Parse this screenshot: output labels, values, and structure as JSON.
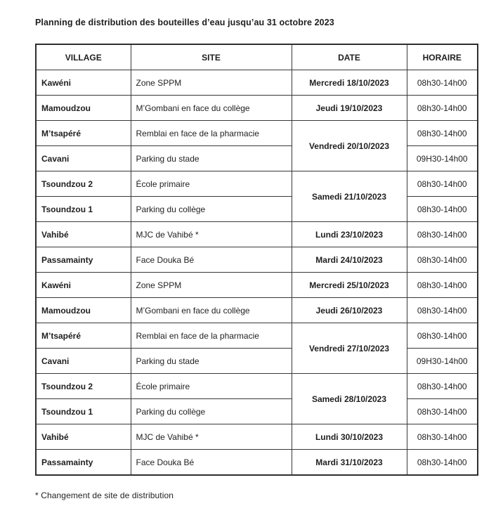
{
  "document": {
    "title": "Planning de distribution des bouteilles d’eau jusqu’au 31 octobre 2023",
    "footnote": "* Changement de site de distribution"
  },
  "table": {
    "headers": [
      "VILLAGE",
      "SITE",
      "DATE",
      "HORAIRE"
    ],
    "rows": [
      {
        "village": "Kawéni",
        "site": "Zone SPPM",
        "date": "Mercredi 18/10/2023",
        "date_rowspan": 1,
        "horaire": "08h30-14h00"
      },
      {
        "village": "Mamoudzou",
        "site": "M’Gombani en face du collège",
        "date": "Jeudi 19/10/2023",
        "date_rowspan": 1,
        "horaire": "08h30-14h00"
      },
      {
        "village": "M’tsapéré",
        "site": "Remblai en face de la pharmacie",
        "date": "Vendredi 20/10/2023",
        "date_rowspan": 2,
        "horaire": "08h30-14h00"
      },
      {
        "village": "Cavani",
        "site": "Parking du stade",
        "date": null,
        "date_rowspan": 0,
        "horaire": "09H30-14h00"
      },
      {
        "village": "Tsoundzou 2",
        "site": "École primaire",
        "date": "Samedi 21/10/2023",
        "date_rowspan": 2,
        "horaire": "08h30-14h00"
      },
      {
        "village": "Tsoundzou 1",
        "site": "Parking du collège",
        "date": null,
        "date_rowspan": 0,
        "horaire": "08h30-14h00"
      },
      {
        "village": "Vahibé",
        "site": "MJC de Vahibé *",
        "date": "Lundi 23/10/2023",
        "date_rowspan": 1,
        "horaire": "08h30-14h00"
      },
      {
        "village": "Passamainty",
        "site": "Face Douka Bé",
        "date": "Mardi 24/10/2023",
        "date_rowspan": 1,
        "horaire": "08h30-14h00"
      },
      {
        "village": "Kawéni",
        "site": "Zone SPPM",
        "date": "Mercredi 25/10/2023",
        "date_rowspan": 1,
        "horaire": "08h30-14h00"
      },
      {
        "village": "Mamoudzou",
        "site": "M’Gombani en face du collège",
        "date": "Jeudi 26/10/2023",
        "date_rowspan": 1,
        "horaire": "08h30-14h00"
      },
      {
        "village": "M’tsapéré",
        "site": "Remblai en face de la pharmacie",
        "date": "Vendredi 27/10/2023",
        "date_rowspan": 2,
        "horaire": "08h30-14h00"
      },
      {
        "village": "Cavani",
        "site": "Parking du stade",
        "date": null,
        "date_rowspan": 0,
        "horaire": "09H30-14h00"
      },
      {
        "village": "Tsoundzou 2",
        "site": "École primaire",
        "date": "Samedi 28/10/2023",
        "date_rowspan": 2,
        "horaire": "08h30-14h00"
      },
      {
        "village": "Tsoundzou 1",
        "site": "Parking du collège",
        "date": null,
        "date_rowspan": 0,
        "horaire": "08h30-14h00"
      },
      {
        "village": "Vahibé",
        "site": "MJC de Vahibé *",
        "date": "Lundi 30/10/2023",
        "date_rowspan": 1,
        "horaire": "08h30-14h00"
      },
      {
        "village": "Passamainty",
        "site": "Face Douka Bé",
        "date": "Mardi 31/10/2023",
        "date_rowspan": 1,
        "horaire": "08h30-14h00"
      }
    ]
  },
  "colors": {
    "text": "#1f1f1f",
    "border": "#383838",
    "background": "#ffffff"
  }
}
